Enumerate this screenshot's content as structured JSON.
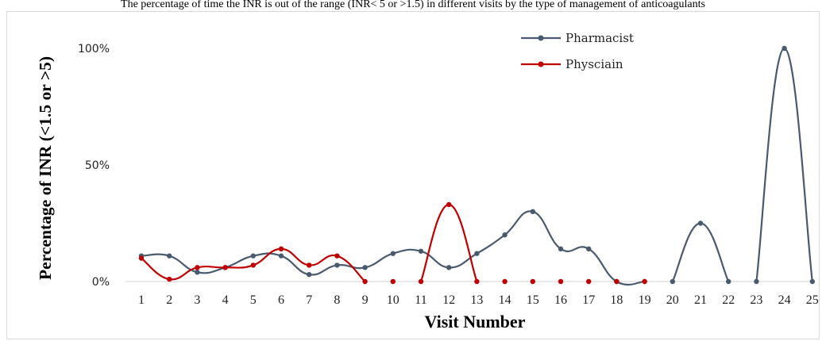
{
  "caption": "The percentage of time the INR is out of the range (INR< 5 or >1.5) in different visits by the type of management of anticoagulants",
  "chart_data": {
    "type": "line",
    "xlabel": "Visit Number",
    "ylabel": "Percentage of INR (<1.5 or >5)",
    "categories": [
      "1",
      "2",
      "3",
      "4",
      "5",
      "6",
      "7",
      "8",
      "9",
      "10",
      "11",
      "12",
      "13",
      "14",
      "15",
      "16",
      "17",
      "18",
      "19",
      "20",
      "21",
      "22",
      "23",
      "24",
      "25"
    ],
    "yticks": [
      "0%",
      "50%",
      "100%"
    ],
    "ylim": [
      0,
      100
    ],
    "grid": false,
    "legend_position": "top-right",
    "series": [
      {
        "name": "Pharmacist",
        "color": "#4a5a6e",
        "values": [
          11,
          11,
          4,
          6,
          11,
          11,
          3,
          7,
          6,
          12,
          13,
          6,
          12,
          20,
          30,
          14,
          14,
          0,
          0,
          0,
          25,
          0,
          0,
          100,
          0
        ]
      },
      {
        "name": "Physciain",
        "color": "#c00000",
        "values": [
          10,
          1,
          6,
          6,
          7,
          14,
          7,
          11,
          0,
          0,
          0,
          33,
          0,
          0,
          0,
          0,
          0,
          0,
          0,
          null,
          null,
          null,
          null,
          null,
          null
        ]
      }
    ]
  }
}
